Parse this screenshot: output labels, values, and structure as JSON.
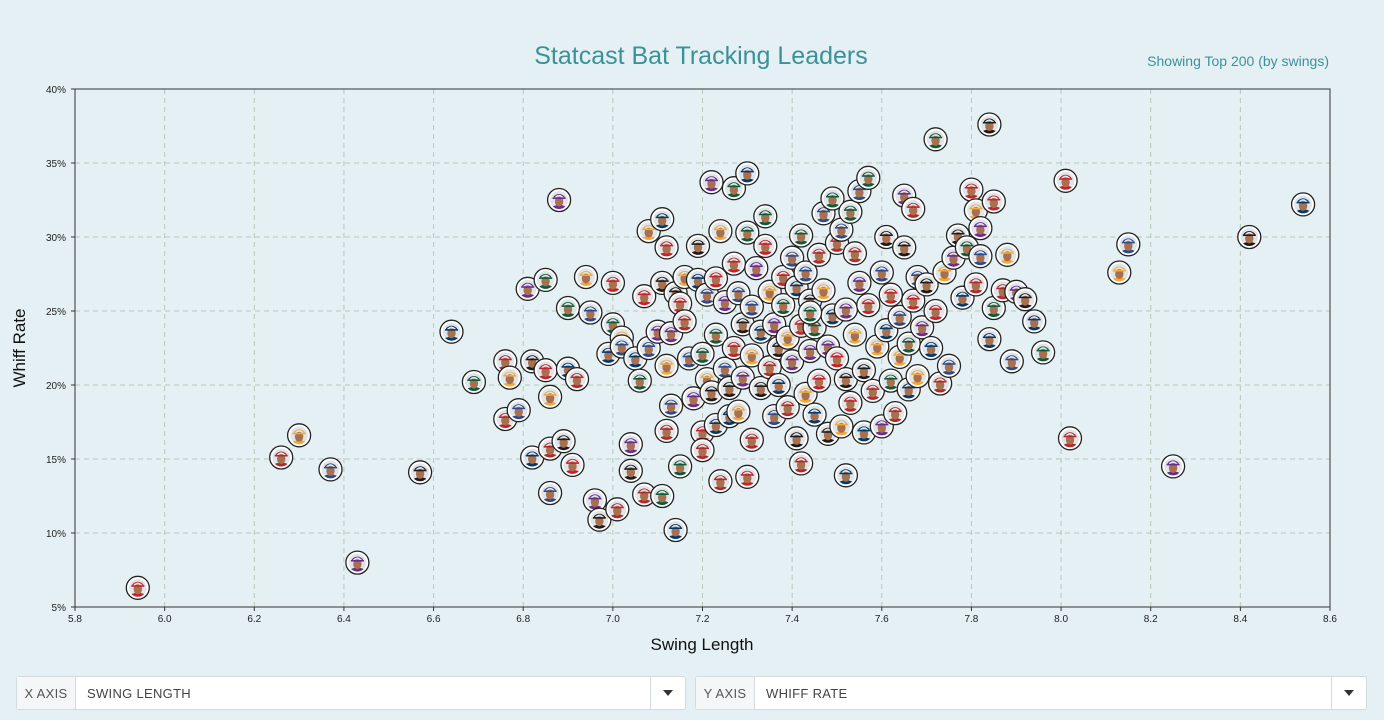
{
  "header": {
    "title": "Statcast Bat Tracking Leaders",
    "subtitle": "Showing Top 200 (by swings)"
  },
  "controls": {
    "x_axis": {
      "label": "X AXIS",
      "value": "SWING LENGTH"
    },
    "y_axis": {
      "label": "Y AXIS",
      "value": "WHIFF RATE"
    }
  },
  "chart_data": {
    "type": "scatter",
    "xlabel": "Swing Length",
    "ylabel": "Whiff Rate",
    "xlim": [
      5.8,
      8.6
    ],
    "ylim": [
      5,
      40
    ],
    "x_ticks": [
      "5.8",
      "6.0",
      "6.2",
      "6.4",
      "6.6",
      "6.8",
      "7.0",
      "7.2",
      "7.4",
      "7.6",
      "7.8",
      "8.0",
      "8.2",
      "8.4",
      "8.6"
    ],
    "y_ticks": [
      "5%",
      "10%",
      "15%",
      "20%",
      "25%",
      "30%",
      "35%",
      "40%"
    ],
    "grid": true,
    "marker": "player-headshot",
    "points": [
      [
        5.94,
        6.3
      ],
      [
        6.26,
        15.1
      ],
      [
        6.3,
        16.6
      ],
      [
        6.37,
        14.3
      ],
      [
        6.43,
        8.0
      ],
      [
        6.57,
        14.1
      ],
      [
        6.64,
        23.6
      ],
      [
        6.69,
        20.2
      ],
      [
        6.76,
        17.7
      ],
      [
        6.76,
        21.6
      ],
      [
        6.77,
        20.5
      ],
      [
        6.79,
        18.3
      ],
      [
        6.81,
        26.5
      ],
      [
        6.82,
        21.6
      ],
      [
        6.82,
        15.1
      ],
      [
        6.85,
        27.1
      ],
      [
        6.85,
        21.0
      ],
      [
        6.86,
        15.7
      ],
      [
        6.86,
        19.2
      ],
      [
        6.86,
        12.7
      ],
      [
        6.88,
        32.5
      ],
      [
        6.89,
        16.2
      ],
      [
        6.9,
        21.1
      ],
      [
        6.9,
        25.2
      ],
      [
        6.91,
        14.6
      ],
      [
        6.92,
        20.4
      ],
      [
        6.94,
        27.3
      ],
      [
        6.95,
        24.9
      ],
      [
        6.96,
        12.2
      ],
      [
        6.97,
        10.9
      ],
      [
        6.99,
        22.1
      ],
      [
        7.0,
        24.1
      ],
      [
        7.0,
        26.9
      ],
      [
        7.01,
        11.6
      ],
      [
        7.02,
        23.2
      ],
      [
        7.02,
        22.6
      ],
      [
        7.04,
        16.0
      ],
      [
        7.04,
        14.2
      ],
      [
        7.05,
        21.8
      ],
      [
        7.06,
        20.3
      ],
      [
        7.07,
        26.0
      ],
      [
        7.07,
        12.6
      ],
      [
        7.08,
        30.4
      ],
      [
        7.08,
        22.5
      ],
      [
        7.1,
        23.6
      ],
      [
        7.11,
        26.9
      ],
      [
        7.11,
        31.2
      ],
      [
        7.11,
        12.5
      ],
      [
        7.12,
        29.3
      ],
      [
        7.12,
        16.9
      ],
      [
        7.12,
        21.3
      ],
      [
        7.13,
        18.6
      ],
      [
        7.13,
        23.5
      ],
      [
        7.14,
        26.2
      ],
      [
        7.14,
        10.2
      ],
      [
        7.15,
        14.5
      ],
      [
        7.15,
        25.5
      ],
      [
        7.16,
        24.3
      ],
      [
        7.16,
        27.3
      ],
      [
        7.17,
        21.8
      ],
      [
        7.18,
        19.1
      ],
      [
        7.19,
        29.4
      ],
      [
        7.19,
        27.1
      ],
      [
        7.2,
        22.1
      ],
      [
        7.2,
        16.8
      ],
      [
        7.2,
        15.6
      ],
      [
        7.21,
        20.4
      ],
      [
        7.21,
        26.1
      ],
      [
        7.22,
        33.7
      ],
      [
        7.22,
        19.5
      ],
      [
        7.23,
        17.3
      ],
      [
        7.23,
        23.4
      ],
      [
        7.23,
        27.2
      ],
      [
        7.24,
        13.5
      ],
      [
        7.24,
        30.4
      ],
      [
        7.25,
        21.1
      ],
      [
        7.25,
        25.6
      ],
      [
        7.26,
        19.8
      ],
      [
        7.26,
        17.9
      ],
      [
        7.27,
        33.3
      ],
      [
        7.27,
        28.2
      ],
      [
        7.27,
        22.5
      ],
      [
        7.28,
        18.2
      ],
      [
        7.28,
        26.2
      ],
      [
        7.29,
        20.5
      ],
      [
        7.29,
        24.1
      ],
      [
        7.3,
        34.3
      ],
      [
        7.3,
        30.3
      ],
      [
        7.3,
        13.8
      ],
      [
        7.31,
        16.3
      ],
      [
        7.31,
        22.0
      ],
      [
        7.31,
        25.3
      ],
      [
        7.32,
        27.9
      ],
      [
        7.33,
        19.8
      ],
      [
        7.33,
        23.6
      ],
      [
        7.34,
        31.4
      ],
      [
        7.34,
        29.4
      ],
      [
        7.35,
        21.2
      ],
      [
        7.35,
        26.3
      ],
      [
        7.36,
        17.9
      ],
      [
        7.36,
        24.1
      ],
      [
        7.37,
        22.5
      ],
      [
        7.37,
        20.0
      ],
      [
        7.38,
        25.4
      ],
      [
        7.38,
        27.3
      ],
      [
        7.39,
        18.5
      ],
      [
        7.39,
        23.2
      ],
      [
        7.4,
        28.6
      ],
      [
        7.4,
        21.6
      ],
      [
        7.41,
        16.4
      ],
      [
        7.41,
        26.6
      ],
      [
        7.42,
        30.1
      ],
      [
        7.42,
        24.0
      ],
      [
        7.42,
        14.7
      ],
      [
        7.43,
        19.4
      ],
      [
        7.43,
        27.6
      ],
      [
        7.44,
        22.3
      ],
      [
        7.44,
        25.7
      ],
      [
        7.45,
        18.0
      ],
      [
        7.45,
        23.9
      ],
      [
        7.46,
        20.3
      ],
      [
        7.46,
        28.8
      ],
      [
        7.47,
        26.4
      ],
      [
        7.47,
        31.6
      ],
      [
        7.48,
        22.6
      ],
      [
        7.48,
        16.7
      ],
      [
        7.49,
        24.7
      ],
      [
        7.49,
        32.6
      ],
      [
        7.5,
        21.8
      ],
      [
        7.5,
        29.6
      ],
      [
        7.51,
        17.2
      ],
      [
        7.51,
        30.5
      ],
      [
        7.52,
        25.1
      ],
      [
        7.52,
        20.4
      ],
      [
        7.52,
        13.9
      ],
      [
        7.53,
        31.7
      ],
      [
        7.53,
        18.8
      ],
      [
        7.54,
        28.9
      ],
      [
        7.54,
        23.4
      ],
      [
        7.55,
        33.1
      ],
      [
        7.55,
        26.9
      ],
      [
        7.56,
        21.0
      ],
      [
        7.56,
        16.8
      ],
      [
        7.57,
        34.0
      ],
      [
        7.57,
        25.4
      ],
      [
        7.58,
        19.6
      ],
      [
        7.59,
        22.6
      ],
      [
        7.6,
        27.6
      ],
      [
        7.6,
        17.2
      ],
      [
        7.61,
        30.0
      ],
      [
        7.61,
        23.7
      ],
      [
        7.62,
        20.3
      ],
      [
        7.62,
        26.1
      ],
      [
        7.63,
        18.1
      ],
      [
        7.64,
        21.9
      ],
      [
        7.64,
        24.6
      ],
      [
        7.65,
        32.8
      ],
      [
        7.65,
        29.3
      ],
      [
        7.66,
        19.7
      ],
      [
        7.66,
        22.8
      ],
      [
        7.67,
        25.7
      ],
      [
        7.67,
        31.9
      ],
      [
        7.68,
        20.6
      ],
      [
        7.68,
        27.3
      ],
      [
        7.69,
        23.9
      ],
      [
        7.7,
        26.8
      ],
      [
        7.71,
        22.5
      ],
      [
        7.72,
        36.6
      ],
      [
        7.72,
        25.0
      ],
      [
        7.73,
        20.1
      ],
      [
        7.74,
        27.6
      ],
      [
        7.75,
        21.3
      ],
      [
        7.76,
        28.6
      ],
      [
        7.77,
        30.1
      ],
      [
        7.78,
        25.9
      ],
      [
        7.79,
        29.3
      ],
      [
        7.8,
        33.2
      ],
      [
        7.81,
        26.8
      ],
      [
        7.81,
        31.8
      ],
      [
        7.82,
        28.7
      ],
      [
        7.82,
        30.6
      ],
      [
        7.84,
        37.6
      ],
      [
        7.84,
        23.1
      ],
      [
        7.85,
        25.2
      ],
      [
        7.85,
        32.4
      ],
      [
        7.87,
        26.4
      ],
      [
        7.88,
        28.8
      ],
      [
        7.89,
        21.6
      ],
      [
        7.9,
        26.3
      ],
      [
        7.92,
        25.8
      ],
      [
        7.94,
        24.3
      ],
      [
        7.96,
        22.2
      ],
      [
        8.01,
        33.8
      ],
      [
        8.02,
        16.4
      ],
      [
        8.13,
        27.6
      ],
      [
        8.15,
        29.5
      ],
      [
        8.25,
        14.5
      ],
      [
        8.42,
        30.0
      ],
      [
        8.54,
        32.2
      ],
      [
        7.44,
        24.9
      ]
    ]
  },
  "colors": {
    "background": "#e4f0f3",
    "title": "#3a9298",
    "grid": "#b7c7b8",
    "team_accents": [
      "#2c4b8c",
      "#c8212c",
      "#1c1c1c",
      "#f2a93b",
      "#0e5b3a",
      "#6a2c91",
      "#b2292e",
      "#003b6f"
    ]
  }
}
